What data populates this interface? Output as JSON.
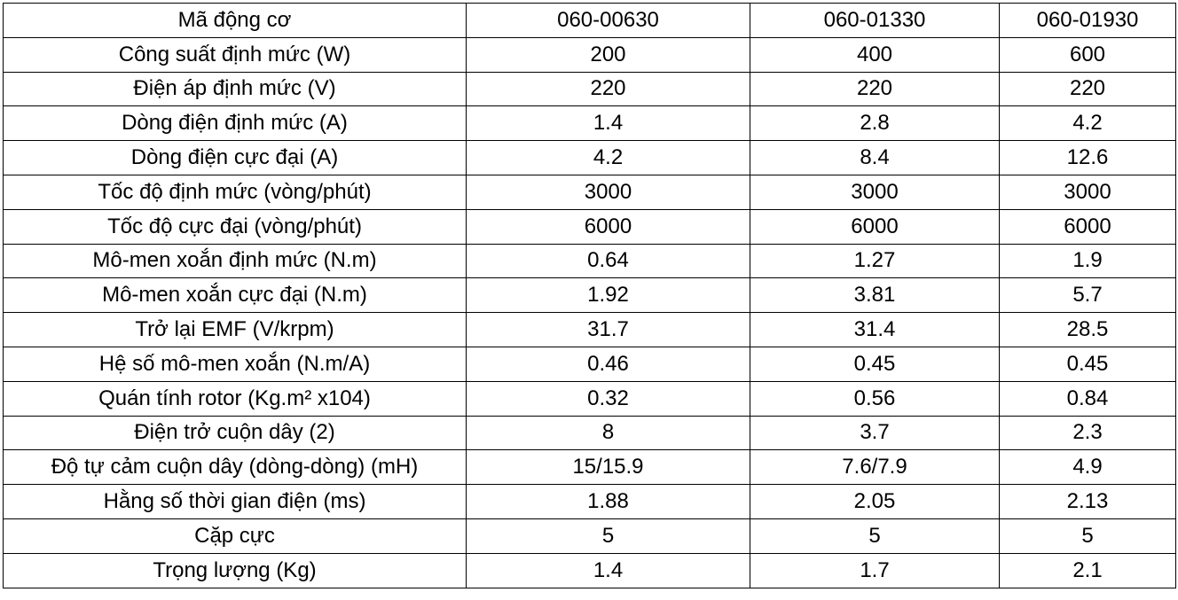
{
  "table": {
    "rows": [
      [
        "Mã động cơ",
        "060-00630",
        "060-01330",
        "060-01930"
      ],
      [
        "Công suất định mức (W)",
        "200",
        "400",
        "600"
      ],
      [
        "Điện áp định mức (V)",
        "220",
        "220",
        "220"
      ],
      [
        "Dòng điện định mức (A)",
        "1.4",
        "2.8",
        "4.2"
      ],
      [
        "Dòng điện cực đại (A)",
        "4.2",
        "8.4",
        "12.6"
      ],
      [
        "Tốc độ định mức (vòng/phút)",
        "3000",
        "3000",
        "3000"
      ],
      [
        "Tốc độ cực đại (vòng/phút)",
        "6000",
        "6000",
        "6000"
      ],
      [
        "Mô-men xoắn định mức (N.m)",
        "0.64",
        "1.27",
        "1.9"
      ],
      [
        "Mô-men xoắn cực đại (N.m)",
        "1.92",
        "3.81",
        "5.7"
      ],
      [
        "Trở lại EMF (V/krpm)",
        "31.7",
        "31.4",
        "28.5"
      ],
      [
        "Hệ số mô-men xoắn (N.m/A)",
        "0.46",
        "0.45",
        "0.45"
      ],
      [
        "Quán tính rotor (Kg.m² x104)",
        "0.32",
        "0.56",
        "0.84"
      ],
      [
        "Điện trở cuộn dây (2)",
        "8",
        "3.7",
        "2.3"
      ],
      [
        "Độ tự cảm cuộn dây (dòng-dòng) (mH)",
        "15/15.9",
        "7.6/7.9",
        "4.9"
      ],
      [
        "Hằng số thời gian điện (ms)",
        "1.88",
        "2.05",
        "2.13"
      ],
      [
        "Cặp cực",
        "5",
        "5",
        "5"
      ],
      [
        "Trọng lượng (Kg)",
        "1.4",
        "1.7",
        "2.1"
      ]
    ]
  }
}
